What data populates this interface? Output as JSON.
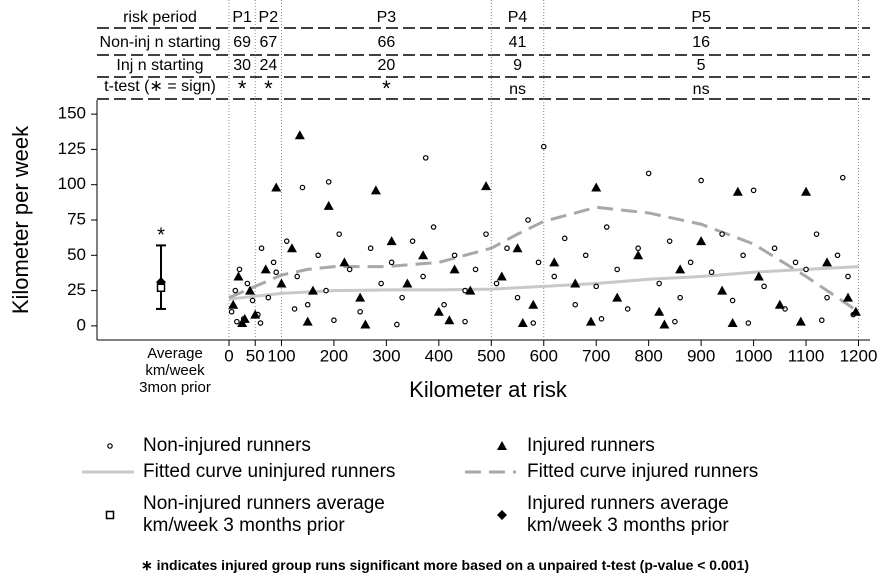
{
  "chart_data": {
    "type": "scatter",
    "x_label": "Kilometer at risk",
    "y_label": "Kilometer per week",
    "xlim": [
      0,
      1220
    ],
    "ylim": [
      -10,
      160
    ],
    "xticks": [
      0,
      50,
      100,
      200,
      300,
      400,
      500,
      600,
      700,
      800,
      900,
      1000,
      1100,
      1200
    ],
    "yticks": [
      0,
      25,
      50,
      75,
      100,
      125,
      150
    ],
    "risk_table": {
      "header_label": "risk period",
      "periods": [
        "P1",
        "P2",
        "P3",
        "P4",
        "P5"
      ],
      "period_bounds": [
        0,
        50,
        100,
        500,
        600,
        1200
      ],
      "rows": [
        {
          "label": "Non-inj n starting",
          "values": [
            69,
            67,
            66,
            41,
            16
          ]
        },
        {
          "label": "Inj n starting",
          "values": [
            30,
            24,
            20,
            9,
            5
          ]
        },
        {
          "label": "t-test (∗ = sign)",
          "values": [
            "*",
            "*",
            "*",
            "ns",
            "ns"
          ]
        }
      ]
    },
    "series": [
      {
        "name": "Non-injured runners",
        "marker": "circle",
        "color": "#000000",
        "x": [
          5,
          12,
          20,
          28,
          35,
          45,
          55,
          62,
          75,
          85,
          90,
          110,
          125,
          130,
          140,
          150,
          170,
          185,
          190,
          210,
          230,
          250,
          270,
          290,
          310,
          330,
          350,
          370,
          375,
          390,
          410,
          430,
          450,
          470,
          490,
          510,
          530,
          550,
          570,
          590,
          600,
          620,
          640,
          660,
          680,
          700,
          720,
          740,
          760,
          780,
          800,
          820,
          840,
          860,
          880,
          900,
          920,
          940,
          960,
          980,
          1000,
          1020,
          1040,
          1060,
          1080,
          1100,
          1120,
          1140,
          1160,
          1170,
          1180,
          1190,
          15,
          60,
          200,
          320,
          450,
          580,
          710,
          850,
          990,
          1130
        ],
        "y": [
          10,
          25,
          40,
          5,
          30,
          18,
          8,
          55,
          20,
          45,
          38,
          60,
          12,
          35,
          98,
          15,
          50,
          25,
          102,
          65,
          40,
          10,
          55,
          30,
          45,
          20,
          60,
          35,
          119,
          70,
          15,
          50,
          25,
          40,
          65,
          30,
          55,
          20,
          75,
          45,
          127,
          35,
          62,
          15,
          50,
          28,
          70,
          40,
          12,
          55,
          108,
          30,
          60,
          20,
          45,
          103,
          38,
          65,
          18,
          50,
          96,
          28,
          55,
          12,
          45,
          40,
          65,
          20,
          50,
          105,
          35,
          8,
          3,
          2,
          4,
          1,
          3,
          2,
          5,
          3,
          2,
          4
        ]
      },
      {
        "name": "Injured runners",
        "marker": "triangle",
        "color": "#000000",
        "x": [
          8,
          18,
          30,
          40,
          50,
          70,
          90,
          100,
          120,
          135,
          160,
          190,
          220,
          250,
          280,
          310,
          340,
          370,
          400,
          430,
          460,
          490,
          520,
          550,
          580,
          620,
          660,
          700,
          740,
          780,
          820,
          860,
          900,
          940,
          970,
          1010,
          1050,
          1100,
          1140,
          1180,
          1195,
          25,
          150,
          260,
          420,
          560,
          690,
          830,
          960,
          1090
        ],
        "y": [
          15,
          35,
          5,
          25,
          8,
          40,
          98,
          30,
          55,
          135,
          25,
          85,
          45,
          20,
          96,
          60,
          30,
          50,
          10,
          40,
          25,
          99,
          35,
          55,
          15,
          45,
          30,
          98,
          20,
          50,
          10,
          40,
          60,
          25,
          95,
          35,
          15,
          95,
          45,
          20,
          10,
          2,
          3,
          1,
          4,
          2,
          3,
          1,
          2,
          3
        ]
      },
      {
        "name": "Fitted curve uninjured runners",
        "type": "line",
        "color": "#c8c8c8",
        "x": [
          0,
          100,
          200,
          300,
          400,
          500,
          600,
          700,
          800,
          900,
          1000,
          1100,
          1200
        ],
        "y": [
          19,
          23,
          25,
          25.5,
          25.5,
          26,
          28,
          30,
          33,
          35,
          38,
          40,
          42
        ]
      },
      {
        "name": "Fitted curve injured runners",
        "type": "line",
        "dash": true,
        "color": "#a8a8a8",
        "x": [
          0,
          100,
          150,
          200,
          300,
          400,
          500,
          550,
          600,
          700,
          800,
          900,
          1000,
          1100,
          1200
        ],
        "y": [
          20,
          36,
          40,
          42,
          42,
          45,
          55,
          65,
          74,
          84,
          80,
          72,
          58,
          35,
          10
        ]
      }
    ],
    "averages": {
      "label": "Average km/week 3mon prior",
      "marker_text": "*",
      "non_injured": {
        "name": "Non-injured runners average km/week 3 months prior",
        "value": 27
      },
      "injured": {
        "name": "Injured runners average km/week 3 months prior",
        "value": 31
      },
      "range": [
        12,
        57
      ]
    },
    "footnote": "∗ indicates injured group runs significant more based on a unpaired t-test (p-value < 0.001)"
  }
}
